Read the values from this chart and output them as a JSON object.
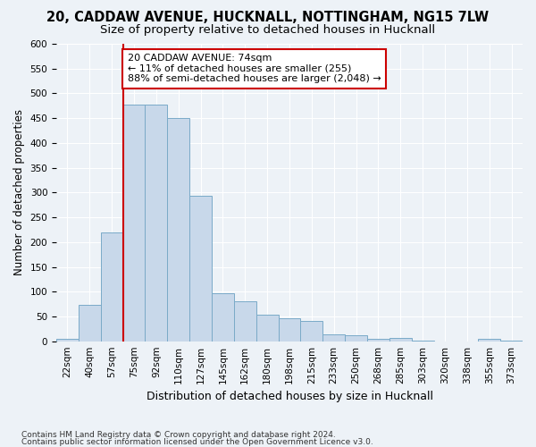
{
  "title1": "20, CADDAW AVENUE, HUCKNALL, NOTTINGHAM, NG15 7LW",
  "title2": "Size of property relative to detached houses in Hucknall",
  "xlabel": "Distribution of detached houses by size in Hucknall",
  "ylabel": "Number of detached properties",
  "bar_color": "#c8d8ea",
  "bar_edge_color": "#7aaac8",
  "annotation_text": "20 CADDAW AVENUE: 74sqm\n← 11% of detached houses are smaller (255)\n88% of semi-detached houses are larger (2,048) →",
  "annotation_box_color": "#ffffff",
  "annotation_box_edge": "#cc0000",
  "marker_line_color": "#cc0000",
  "marker_bin_idx": 3,
  "categories": [
    "22sqm",
    "40sqm",
    "57sqm",
    "75sqm",
    "92sqm",
    "110sqm",
    "127sqm",
    "145sqm",
    "162sqm",
    "180sqm",
    "198sqm",
    "215sqm",
    "233sqm",
    "250sqm",
    "268sqm",
    "285sqm",
    "303sqm",
    "320sqm",
    "338sqm",
    "355sqm",
    "373sqm"
  ],
  "values": [
    5,
    73,
    220,
    477,
    478,
    450,
    294,
    96,
    81,
    54,
    47,
    41,
    13,
    12,
    5,
    6,
    1,
    0,
    0,
    5,
    2
  ],
  "ylim": [
    0,
    600
  ],
  "yticks": [
    0,
    50,
    100,
    150,
    200,
    250,
    300,
    350,
    400,
    450,
    500,
    550,
    600
  ],
  "footer1": "Contains HM Land Registry data © Crown copyright and database right 2024.",
  "footer2": "Contains public sector information licensed under the Open Government Licence v3.0.",
  "title1_fontsize": 10.5,
  "title2_fontsize": 9.5,
  "xlabel_fontsize": 9,
  "ylabel_fontsize": 8.5,
  "tick_fontsize": 7.5,
  "footer_fontsize": 6.5,
  "annotation_fontsize": 8,
  "bg_color": "#edf2f7",
  "plot_bg_color": "#edf2f7"
}
